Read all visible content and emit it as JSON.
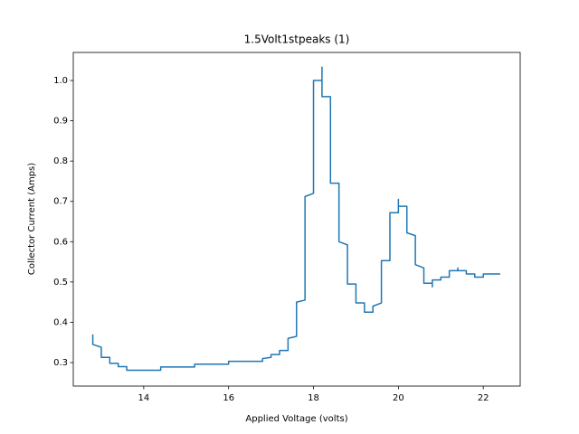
{
  "chart_data": {
    "type": "line",
    "title": "1.5Volt1stpeaks (1)",
    "x_label": "Applied Voltage (volts)",
    "y_label": "Collector Current (Amps)",
    "color": "#1f77b4",
    "x": [
      12.8,
      12.8,
      13.0,
      13.0,
      13.2,
      13.2,
      13.4,
      13.4,
      13.6,
      13.6,
      14.4,
      14.4,
      15.2,
      15.2,
      16.0,
      16.0,
      16.8,
      16.8,
      17.0,
      17.0,
      17.2,
      17.2,
      17.4,
      17.4,
      17.6,
      17.6,
      17.8,
      17.8,
      18.0,
      18.0,
      18.2,
      18.2,
      18.2,
      18.4,
      18.4,
      18.6,
      18.6,
      18.8,
      18.8,
      19.0,
      19.0,
      19.2,
      19.2,
      19.4,
      19.4,
      19.6,
      19.6,
      19.8,
      19.8,
      20.0,
      20.0,
      20.0,
      20.2,
      20.2,
      20.4,
      20.4,
      20.6,
      20.6,
      20.8,
      20.8,
      20.8,
      21.0,
      21.0,
      21.2,
      21.2,
      21.4,
      21.4,
      21.4,
      21.6,
      21.6,
      21.8,
      21.8,
      22.0,
      22.0,
      22.4
    ],
    "values": [
      0.37,
      0.345,
      0.338,
      0.313,
      0.313,
      0.298,
      0.298,
      0.29,
      0.29,
      0.281,
      0.281,
      0.289,
      0.289,
      0.296,
      0.296,
      0.303,
      0.303,
      0.31,
      0.313,
      0.32,
      0.32,
      0.33,
      0.33,
      0.36,
      0.365,
      0.45,
      0.455,
      0.712,
      0.72,
      1.0,
      1.0,
      1.033,
      0.96,
      0.96,
      0.745,
      0.745,
      0.6,
      0.592,
      0.495,
      0.495,
      0.448,
      0.448,
      0.425,
      0.425,
      0.44,
      0.448,
      0.553,
      0.553,
      0.672,
      0.672,
      0.705,
      0.688,
      0.688,
      0.622,
      0.615,
      0.543,
      0.535,
      0.497,
      0.497,
      0.488,
      0.505,
      0.505,
      0.512,
      0.512,
      0.528,
      0.528,
      0.535,
      0.528,
      0.528,
      0.52,
      0.52,
      0.512,
      0.512,
      0.52,
      0.52
    ],
    "xlim": [
      12.34,
      22.87
    ],
    "ylim": [
      0.2417,
      1.0696
    ],
    "xticks": [
      14,
      16,
      18,
      20,
      22
    ],
    "yticks": [
      0.3,
      0.4,
      0.5,
      0.6,
      0.7,
      0.8,
      0.9,
      {
        "value": 1.0,
        "label": "1.0"
      }
    ]
  }
}
